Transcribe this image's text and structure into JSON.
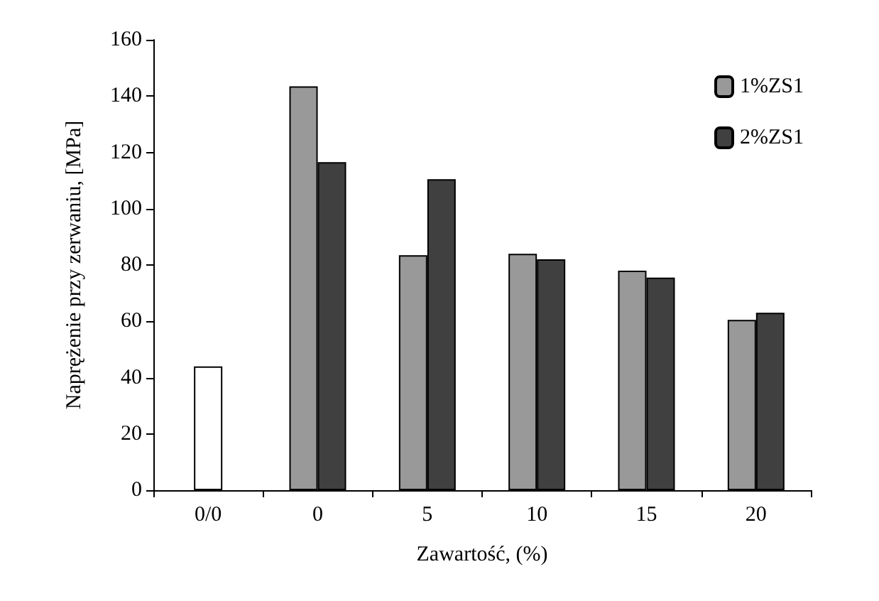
{
  "chart_data": {
    "type": "bar",
    "xlabel": "Zawartość, (%)",
    "ylabel": "Naprężenie przy zerwaniu, [MPa]",
    "categories": [
      "0/0",
      "0",
      "5",
      "10",
      "15",
      "20"
    ],
    "series": [
      {
        "color": "#ffffff",
        "values": [
          44,
          null,
          null,
          null,
          null,
          null
        ]
      },
      {
        "name": "1%ZS1",
        "color": "#999999",
        "values": [
          null,
          143.5,
          83.5,
          84,
          78,
          60.5
        ]
      },
      {
        "name": "2%ZS1",
        "color": "#404040",
        "values": [
          null,
          116.5,
          110.5,
          82,
          75.5,
          63
        ]
      }
    ],
    "ylim": [
      0,
      160
    ],
    "yticks": [
      0,
      20,
      40,
      60,
      80,
      100,
      120,
      140,
      160
    ],
    "grid": false,
    "legend": "top right"
  }
}
